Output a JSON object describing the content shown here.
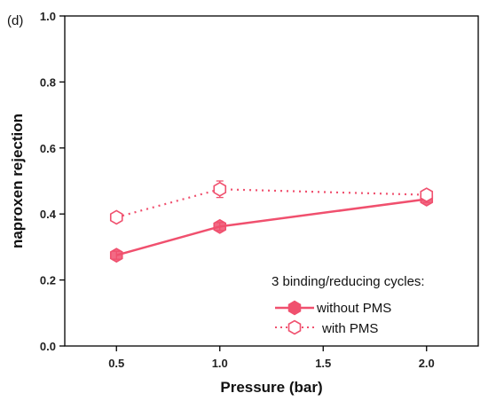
{
  "chart_data": {
    "type": "line",
    "panel_label": "(d)",
    "xlabel": "Pressure (bar)",
    "ylabel": "naproxen rejection",
    "xlim": [
      0.25,
      2.25
    ],
    "ylim": [
      0.0,
      1.0
    ],
    "x_ticks": [
      0.5,
      1.0,
      1.5,
      2.0
    ],
    "x_tick_labels": [
      "0.5",
      "1.0",
      "1.5",
      "2.0"
    ],
    "y_ticks": [
      0.0,
      0.2,
      0.4,
      0.6,
      0.8,
      1.0
    ],
    "y_tick_labels": [
      "0.0",
      "0.2",
      "0.4",
      "0.6",
      "0.8",
      "1.0"
    ],
    "grid": false,
    "legend_title": "3 binding/reducing cycles:",
    "legend_position": "bottom-right",
    "color": "#f0506e",
    "series": [
      {
        "name": "without PMS",
        "marker": "filled-hexagon",
        "line_style": "solid",
        "x": [
          0.5,
          1.0,
          2.0
        ],
        "y": [
          0.275,
          0.362,
          0.445
        ],
        "err": [
          0.012,
          0.012,
          0.01
        ]
      },
      {
        "name": "with PMS",
        "marker": "open-hexagon",
        "line_style": "dotted",
        "x": [
          0.5,
          1.0,
          2.0
        ],
        "y": [
          0.39,
          0.475,
          0.458
        ],
        "err": [
          0.01,
          0.025,
          0.015
        ]
      }
    ]
  }
}
